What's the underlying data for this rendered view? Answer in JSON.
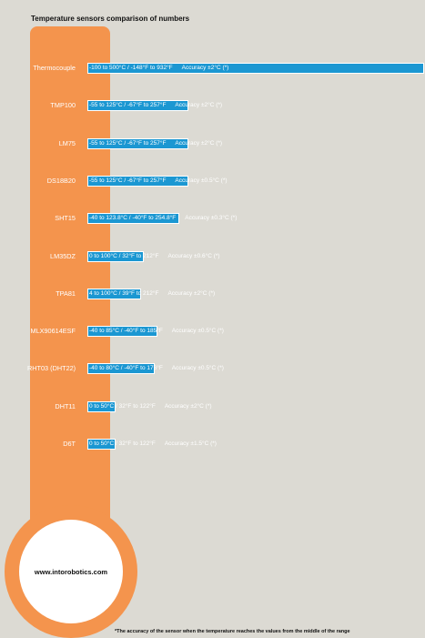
{
  "chart_data": {
    "type": "bar",
    "title": "Temperature sensors comparison of numbers",
    "orientation": "horizontal",
    "categories": [
      "Thermocouple",
      "TMP100",
      "LM75",
      "DS18B20",
      "SHT15",
      "LM35DZ",
      "TPA81",
      "MLX90614ESF",
      "RHT03 (DHT22)",
      "DHT11",
      "D6T"
    ],
    "values": [
      600,
      180,
      180,
      180,
      163.8,
      100,
      96,
      125,
      120,
      50,
      50
    ],
    "value_meaning": "temperature range span (°C)",
    "annotations": [
      {
        "range_c": "-100 to 500°C",
        "range_f": "-148°F to 932°F",
        "accuracy": "Accuracy ±2°C (*)"
      },
      {
        "range_c": "-55 to 125°C",
        "range_f": "-67°F to 257°F",
        "accuracy": "Accuracy ±2°C (*)"
      },
      {
        "range_c": "-55 to 125°C",
        "range_f": "-67°F to 257°F",
        "accuracy": "Accuracy ±2°C (*)"
      },
      {
        "range_c": "-55 to 125°C",
        "range_f": "-67°F to 257°F",
        "accuracy": "Accuracy ±0.5°C (*)"
      },
      {
        "range_c": "-40 to 123.8°C",
        "range_f": "-40°F to 254.8°F",
        "accuracy": "Accuracy ±0.3°C (*)"
      },
      {
        "range_c": "0 to 100°C",
        "range_f": "32°F to 212°F",
        "accuracy": "Accuracy ±0.6°C (*)"
      },
      {
        "range_c": "4 to 100°C",
        "range_f": "39°F to 212°F",
        "accuracy": "Accuracy ±2°C (*)"
      },
      {
        "range_c": "-40 to 85°C",
        "range_f": "-40°F to 185°F",
        "accuracy": "Accuracy ±0.5°C (*)"
      },
      {
        "range_c": "-40 to 80°C",
        "range_f": "-40°F to 176°F",
        "accuracy": "Accuracy ±0.5°C (*)"
      },
      {
        "range_c": "0 to 50°C",
        "range_f": "32°F to 122°F",
        "accuracy": "Accuracy ±2°C (*)"
      },
      {
        "range_c": "0 to 50°C",
        "range_f": "32°F to 122°F",
        "accuracy": "Accuracy ±1.5°C (*)"
      }
    ],
    "footnote": "*The accuracy of the sensor when the temperature reaches the values from the middle of the range"
  },
  "branding": {
    "website": "www.intorobotics.com"
  },
  "colors": {
    "background": "#dcdad3",
    "thermometer": "#f4944d",
    "bar": "#1b97d2",
    "bulb_center": "#ffffff"
  }
}
